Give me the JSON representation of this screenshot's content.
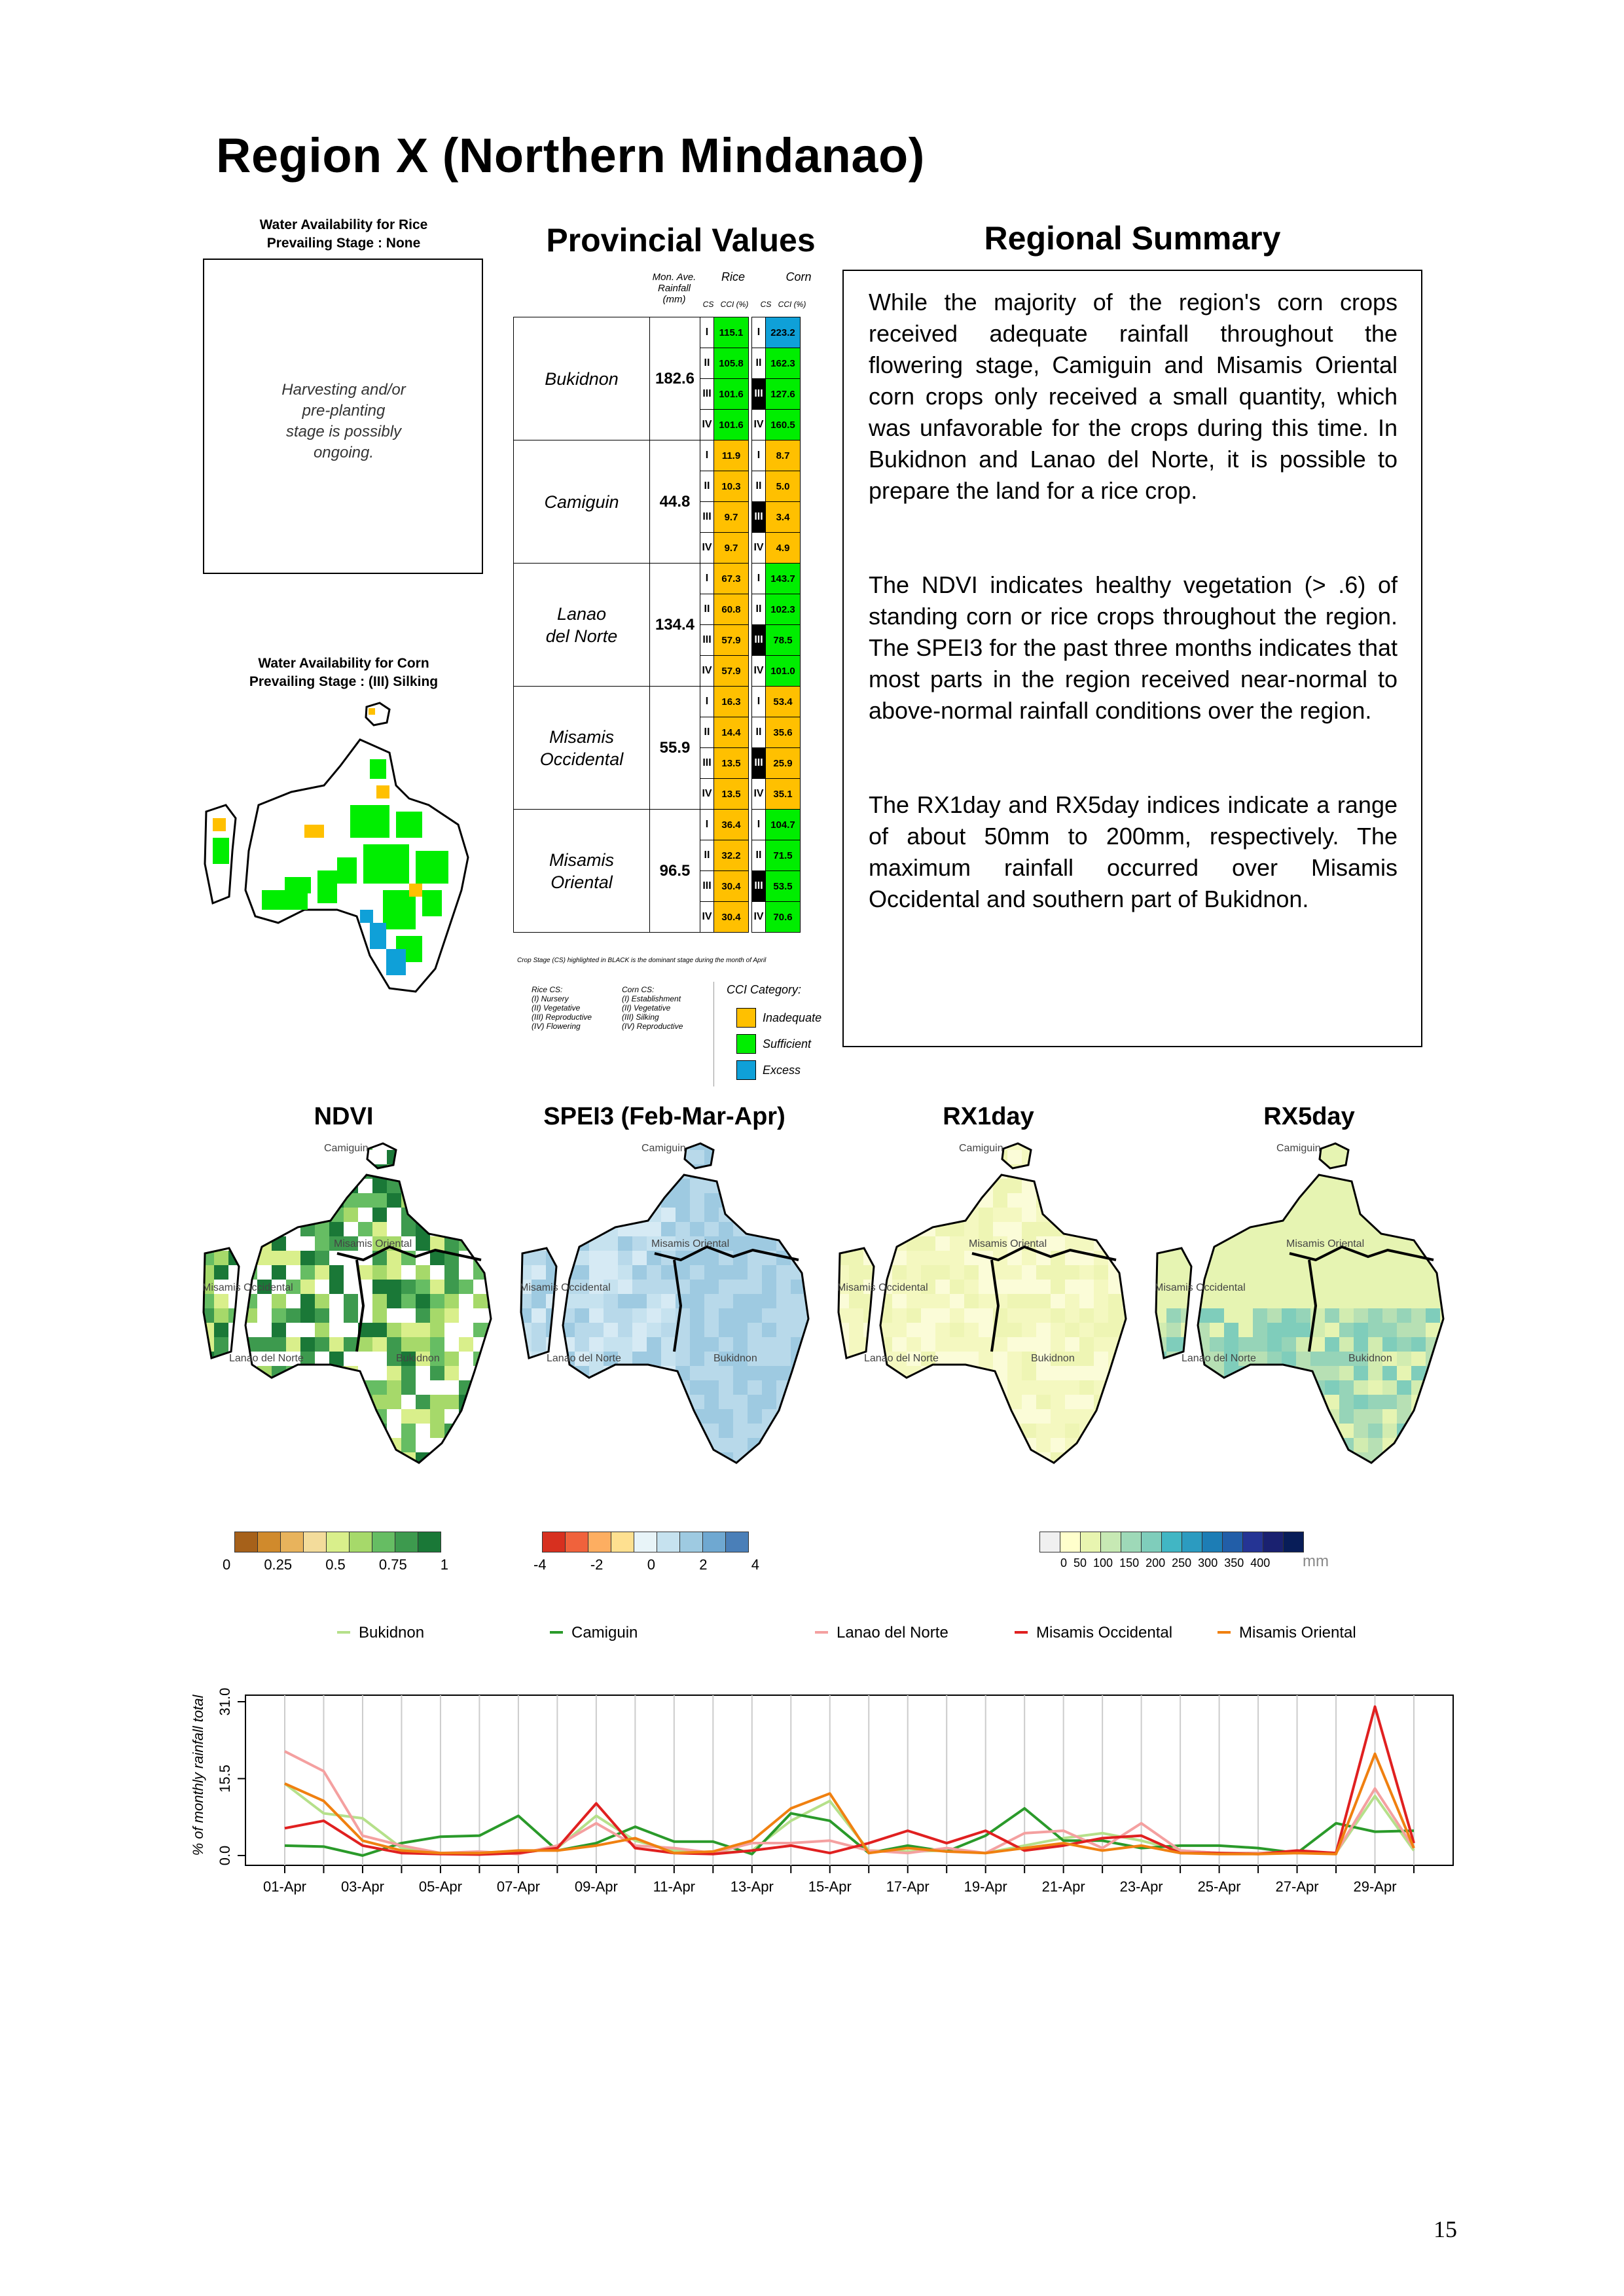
{
  "page": {
    "title": "Region X (Northern Mindanao)",
    "number": "15"
  },
  "rice_panel": {
    "caption_line1": "Water Availability for Rice",
    "caption_line2": "Prevailing Stage : None",
    "box_line1": "Harvesting and/or",
    "box_line2": "pre-planting",
    "box_line3": "stage is possibly",
    "box_line4": "ongoing."
  },
  "corn_panel": {
    "caption_line1": "Water Availability for Corn",
    "caption_line2": "Prevailing Stage : (III) Silking"
  },
  "provincial": {
    "title": "Provincial Values",
    "hdr_rain1": "Mon. Ave.",
    "hdr_rain2": "Rainfall",
    "hdr_rain3": "(mm)",
    "hdr_rice": "Rice",
    "hdr_corn": "Corn",
    "hdr_cs": "CS",
    "hdr_cci": "CCI (%)",
    "provinces": [
      {
        "name1": "Bukidnon",
        "name2": "",
        "rain": "182.6",
        "rows": [
          {
            "rcs": "I",
            "rice": "115.1",
            "rc": "grn",
            "ccs": "I",
            "corn": "223.2",
            "cc": "blu",
            "cblk": false
          },
          {
            "rcs": "II",
            "rice": "105.8",
            "rc": "grn",
            "ccs": "II",
            "corn": "162.3",
            "cc": "grn",
            "cblk": false
          },
          {
            "rcs": "III",
            "rice": "101.6",
            "rc": "grn",
            "ccs": "III",
            "corn": "127.6",
            "cc": "grn",
            "cblk": true
          },
          {
            "rcs": "IV",
            "rice": "101.6",
            "rc": "grn",
            "ccs": "IV",
            "corn": "160.5",
            "cc": "grn",
            "cblk": false
          }
        ]
      },
      {
        "name1": "Camiguin",
        "name2": "",
        "rain": "44.8",
        "rows": [
          {
            "rcs": "I",
            "rice": "11.9",
            "rc": "yel",
            "ccs": "I",
            "corn": "8.7",
            "cc": "yel",
            "cblk": false
          },
          {
            "rcs": "II",
            "rice": "10.3",
            "rc": "yel",
            "ccs": "II",
            "corn": "5.0",
            "cc": "yel",
            "cblk": false
          },
          {
            "rcs": "III",
            "rice": "9.7",
            "rc": "yel",
            "ccs": "III",
            "corn": "3.4",
            "cc": "yel",
            "cblk": true
          },
          {
            "rcs": "IV",
            "rice": "9.7",
            "rc": "yel",
            "ccs": "IV",
            "corn": "4.9",
            "cc": "yel",
            "cblk": false
          }
        ]
      },
      {
        "name1": "Lanao",
        "name2": "del Norte",
        "rain": "134.4",
        "rows": [
          {
            "rcs": "I",
            "rice": "67.3",
            "rc": "yel",
            "ccs": "I",
            "corn": "143.7",
            "cc": "grn",
            "cblk": false
          },
          {
            "rcs": "II",
            "rice": "60.8",
            "rc": "yel",
            "ccs": "II",
            "corn": "102.3",
            "cc": "grn",
            "cblk": false
          },
          {
            "rcs": "III",
            "rice": "57.9",
            "rc": "yel",
            "ccs": "III",
            "corn": "78.5",
            "cc": "grn",
            "cblk": true
          },
          {
            "rcs": "IV",
            "rice": "57.9",
            "rc": "yel",
            "ccs": "IV",
            "corn": "101.0",
            "cc": "grn",
            "cblk": false
          }
        ]
      },
      {
        "name1": "Misamis",
        "name2": "Occidental",
        "rain": "55.9",
        "rows": [
          {
            "rcs": "I",
            "rice": "16.3",
            "rc": "yel",
            "ccs": "I",
            "corn": "53.4",
            "cc": "yel",
            "cblk": false
          },
          {
            "rcs": "II",
            "rice": "14.4",
            "rc": "yel",
            "ccs": "II",
            "corn": "35.6",
            "cc": "yel",
            "cblk": false
          },
          {
            "rcs": "III",
            "rice": "13.5",
            "rc": "yel",
            "ccs": "III",
            "corn": "25.9",
            "cc": "yel",
            "cblk": true
          },
          {
            "rcs": "IV",
            "rice": "13.5",
            "rc": "yel",
            "ccs": "IV",
            "corn": "35.1",
            "cc": "yel",
            "cblk": false
          }
        ]
      },
      {
        "name1": "Misamis",
        "name2": "Oriental",
        "rain": "96.5",
        "rows": [
          {
            "rcs": "I",
            "rice": "36.4",
            "rc": "yel",
            "ccs": "I",
            "corn": "104.7",
            "cc": "grn",
            "cblk": false
          },
          {
            "rcs": "II",
            "rice": "32.2",
            "rc": "yel",
            "ccs": "II",
            "corn": "71.5",
            "cc": "grn",
            "cblk": false
          },
          {
            "rcs": "III",
            "rice": "30.4",
            "rc": "yel",
            "ccs": "III",
            "corn": "53.5",
            "cc": "grn",
            "cblk": true
          },
          {
            "rcs": "IV",
            "rice": "30.4",
            "rc": "yel",
            "ccs": "IV",
            "corn": "70.6",
            "cc": "grn",
            "cblk": false
          }
        ]
      }
    ],
    "note": "Crop Stage (CS) highlighted in BLACK is the dominant stage during the month of April",
    "rice_cs_title": "Rice CS:",
    "rice_cs": [
      "(I) Nursery",
      "(II) Vegetative",
      "(III) Reproductive",
      "(IV) Flowering"
    ],
    "corn_cs_title": "Corn CS:",
    "corn_cs": [
      "(I) Establishment",
      "(II) Vegetative",
      "(III) Silking",
      "(IV) Reproductive"
    ],
    "cci_title": "CCI Category:",
    "cci": [
      {
        "label": "Inadequate",
        "color": "#ffc000"
      },
      {
        "label": "Sufficient",
        "color": "#00ee00"
      },
      {
        "label": "Excess",
        "color": "#0fa0d8"
      }
    ]
  },
  "summary": {
    "title": "Regional Summary",
    "p1": "While the majority of the region's corn crops received adequate rainfall throughout the flowering stage, Camiguin and Misamis Oriental corn crops only received a small quantity, which was unfavorable for the crops during this time. In Bukidnon and Lanao del Norte, it is possible to prepare the land for a rice crop.",
    "p2": "The NDVI indicates healthy vegetation (> .6) of standing corn or rice crops throughout the region. The SPEI3 for the past three months indicates that most parts in the region received near-normal to above-normal rainfall conditions over the region.",
    "p3": "The RX1day and RX5day indices indicate a range of about 50mm to 200mm, respectively. The maximum rainfall occurred over Misamis Occidental and southern part of Bukidnon."
  },
  "maps": {
    "titles": [
      "NDVI",
      "SPEI3 (Feb-Mar-Apr)",
      "RX1day",
      "RX5day"
    ],
    "labels": {
      "camiguin": "Camiguin",
      "mis_or": "Misamis Oriental",
      "mis_occ": "Misamis Occidental",
      "lanao": "Lanao del Norte",
      "bukidnon": "Bukidnon"
    },
    "ndvi_ticks": [
      "0",
      "0.25",
      "0.5",
      "0.75",
      "1"
    ],
    "ndvi_colors": [
      "#a6611a",
      "#d08a2c",
      "#e8b35c",
      "#f3dc9b",
      "#d9ef8b",
      "#a6d96a",
      "#66bd63",
      "#3d9a4e",
      "#1a7837"
    ],
    "spei_ticks": [
      "-4",
      "-2",
      "0",
      "2",
      "4"
    ],
    "spei_colors": [
      "#d7301f",
      "#f0623c",
      "#fdae61",
      "#fee090",
      "#e8f4f8",
      "#c6e2ef",
      "#9ecae1",
      "#6fa8d1",
      "#4a7fb8"
    ],
    "rx_ticks": "0  50  100  150  200  250  300  350  400",
    "rx_unit": "mm",
    "rx_colors": [
      "#f0f0f0",
      "#ffffcc",
      "#e8f5b0",
      "#c7e9b4",
      "#9ed9b8",
      "#7fcdbb",
      "#41b6c4",
      "#2c9bc0",
      "#1d7db5",
      "#225ea8",
      "#253494",
      "#1a2170",
      "#081d58"
    ]
  },
  "chart_data": {
    "type": "line",
    "ylabel": "% of monthly rainfall total",
    "yticks": [
      "0.0",
      "15.5",
      "31.0"
    ],
    "ylim": [
      0,
      31
    ],
    "x": [
      "01-Apr",
      "02-Apr",
      "03-Apr",
      "04-Apr",
      "05-Apr",
      "06-Apr",
      "07-Apr",
      "08-Apr",
      "09-Apr",
      "10-Apr",
      "11-Apr",
      "12-Apr",
      "13-Apr",
      "14-Apr",
      "15-Apr",
      "16-Apr",
      "17-Apr",
      "18-Apr",
      "19-Apr",
      "20-Apr",
      "21-Apr",
      "22-Apr",
      "23-Apr",
      "24-Apr",
      "25-Apr",
      "26-Apr",
      "27-Apr",
      "28-Apr",
      "29-Apr",
      "30-Apr"
    ],
    "xtick_labels": [
      "01-Apr",
      "03-Apr",
      "05-Apr",
      "07-Apr",
      "09-Apr",
      "11-Apr",
      "13-Apr",
      "15-Apr",
      "17-Apr",
      "19-Apr",
      "21-Apr",
      "23-Apr",
      "25-Apr",
      "27-Apr",
      "29-Apr"
    ],
    "series": [
      {
        "name": "Bukidnon",
        "color": "#b5e08a",
        "values": [
          14.5,
          8.5,
          7.5,
          1.5,
          0.5,
          0.3,
          0.5,
          1.5,
          8.0,
          3.0,
          1.0,
          0.5,
          1.0,
          7.0,
          11.0,
          1.0,
          0.8,
          1.0,
          0.5,
          2.0,
          3.5,
          4.5,
          3.0,
          1.0,
          0.5,
          0.5,
          0.8,
          0.5,
          12.0,
          1.0
        ]
      },
      {
        "name": "Camiguin",
        "color": "#2a9a2a",
        "values": [
          2.0,
          1.8,
          0.0,
          2.5,
          3.8,
          4.0,
          8.0,
          1.0,
          2.5,
          5.8,
          2.8,
          2.8,
          0.3,
          8.5,
          7.0,
          0.5,
          2.0,
          0.8,
          4.0,
          9.5,
          3.0,
          3.0,
          1.5,
          2.0,
          2.0,
          1.5,
          0.5,
          6.5,
          4.8,
          5.0
        ]
      },
      {
        "name": "Lanao del Norte",
        "color": "#f4a0a0",
        "values": [
          21.0,
          17.0,
          4.0,
          2.0,
          0.5,
          0.8,
          0.3,
          2.0,
          6.5,
          2.0,
          1.5,
          0.5,
          2.5,
          2.5,
          3.0,
          1.0,
          0.5,
          1.5,
          0.5,
          4.5,
          5.0,
          1.5,
          6.5,
          1.0,
          0.5,
          0.5,
          0.8,
          0.5,
          13.5,
          1.5
        ]
      },
      {
        "name": "Misamis Occidental",
        "color": "#e02020",
        "values": [
          5.5,
          7.0,
          2.0,
          0.5,
          0.3,
          0.2,
          0.5,
          1.5,
          10.5,
          1.5,
          0.5,
          0.3,
          1.0,
          2.0,
          0.5,
          2.5,
          5.0,
          2.5,
          5.0,
          1.0,
          2.0,
          3.5,
          4.0,
          0.5,
          0.5,
          0.3,
          1.0,
          0.5,
          30.0,
          2.5
        ]
      },
      {
        "name": "Misamis Oriental",
        "color": "#f08010",
        "values": [
          14.5,
          11.0,
          3.0,
          1.0,
          0.5,
          0.5,
          1.0,
          1.0,
          2.0,
          3.5,
          0.5,
          0.8,
          3.0,
          9.5,
          12.5,
          0.5,
          1.5,
          0.8,
          0.5,
          1.5,
          2.5,
          1.0,
          2.0,
          0.5,
          0.3,
          0.3,
          0.5,
          0.3,
          20.5,
          1.5
        ]
      }
    ]
  }
}
